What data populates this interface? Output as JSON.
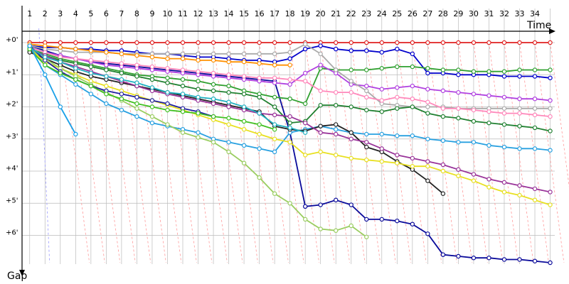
{
  "chart_data": {
    "type": "line",
    "title": "",
    "xlabel": "Time",
    "ylabel": "Gap",
    "x": [
      1,
      2,
      3,
      4,
      5,
      6,
      7,
      8,
      9,
      10,
      11,
      12,
      13,
      14,
      15,
      16,
      17,
      18,
      19,
      20,
      21,
      22,
      23,
      24,
      25,
      26,
      27,
      28,
      29,
      30,
      31,
      32,
      33,
      34,
      35
    ],
    "xtick_labels": [
      "1",
      "2",
      "3",
      "4",
      "5",
      "6",
      "7",
      "8",
      "9",
      "10",
      "11",
      "12",
      "13",
      "14",
      "15",
      "16",
      "17",
      "18",
      "19",
      "20",
      "21",
      "22",
      "23",
      "24",
      "25",
      "26",
      "27",
      "28",
      "29",
      "30",
      "31",
      "32",
      "33",
      "34"
    ],
    "ytick_labels": [
      "+0'",
      "+1'",
      "+2'",
      "+3'",
      "+4'",
      "+5'",
      "+6'"
    ],
    "ytick_values": [
      0,
      1,
      2,
      3,
      4,
      5,
      6
    ],
    "xlim": [
      0.5,
      35.3
    ],
    "ylim": [
      0,
      6.85
    ],
    "y_inverted": true,
    "grid": true,
    "colors": {
      "grid": "#bbbbbb",
      "gap_line": "#ff9999",
      "first_lap_line": "#9999ff"
    },
    "series": [
      {
        "color": "#e02020",
        "values": [
          0,
          0,
          0,
          0,
          0,
          0,
          0,
          0,
          0,
          0,
          0,
          0,
          0,
          0,
          0,
          0,
          0,
          0,
          0,
          0,
          0,
          0,
          0,
          0,
          0,
          0,
          0,
          0,
          0,
          0,
          0,
          0,
          0,
          0,
          0
        ]
      },
      {
        "color": "#0000cc",
        "values": [
          0.1,
          0.15,
          0.15,
          0.2,
          0.2,
          0.25,
          0.25,
          0.3,
          0.35,
          0.35,
          0.4,
          0.45,
          0.45,
          0.5,
          0.55,
          0.55,
          0.6,
          0.5,
          0.2,
          0.1,
          0.2,
          0.25,
          0.25,
          0.3,
          0.2,
          0.35,
          0.95,
          0.95,
          1.0,
          1.0,
          1.0,
          1.05,
          1.05,
          1.05,
          1.1
        ]
      },
      {
        "color": "#0a0a9a",
        "values": [
          0.1,
          0.25,
          0.4,
          0.5,
          0.6,
          0.65,
          0.7,
          0.75,
          0.8,
          0.85,
          0.9,
          0.95,
          1.0,
          1.05,
          1.1,
          1.15,
          1.2,
          2.8,
          5.1,
          5.05,
          4.9,
          5.05,
          5.5,
          5.5,
          5.55,
          5.65,
          5.95,
          6.6,
          6.65,
          6.7,
          6.7,
          6.75,
          6.75,
          6.8,
          6.85
        ]
      },
      {
        "color": "#30a030",
        "values": [
          0.2,
          0.35,
          0.5,
          0.6,
          0.7,
          0.8,
          0.9,
          1.0,
          1.05,
          1.1,
          1.15,
          1.2,
          1.3,
          1.35,
          1.5,
          1.6,
          1.7,
          1.75,
          1.9,
          0.8,
          0.85,
          0.85,
          0.85,
          0.8,
          0.75,
          0.75,
          0.8,
          0.85,
          0.85,
          0.9,
          0.9,
          0.9,
          0.85,
          0.85,
          0.85
        ]
      },
      {
        "color": "#b040e0",
        "values": [
          0.15,
          0.3,
          0.4,
          0.5,
          0.6,
          0.7,
          0.75,
          0.8,
          0.85,
          0.9,
          0.95,
          1.0,
          1.05,
          1.1,
          1.15,
          1.2,
          1.25,
          1.3,
          0.95,
          0.7,
          0.95,
          1.3,
          1.35,
          1.45,
          1.4,
          1.35,
          1.45,
          1.5,
          1.55,
          1.6,
          1.65,
          1.7,
          1.75,
          1.75,
          1.8
        ]
      },
      {
        "color": "#aaaaaa",
        "values": [
          0.1,
          0.2,
          0.25,
          0.3,
          0.3,
          0.3,
          0.35,
          0.35,
          0.35,
          0.35,
          0.35,
          0.35,
          0.35,
          0.35,
          0.35,
          0.35,
          0.35,
          0.3,
          0.05,
          0.35,
          0.85,
          1.2,
          1.5,
          1.9,
          1.95,
          2.0,
          2.0,
          2.0,
          2.05,
          2.05,
          2.05,
          2.05,
          2.05,
          2.05,
          2.05
        ]
      },
      {
        "color": "#ff88bb",
        "values": [
          0.15,
          0.3,
          0.45,
          0.5,
          0.55,
          0.6,
          0.65,
          0.7,
          0.75,
          0.8,
          0.85,
          0.9,
          0.95,
          1.0,
          1.05,
          1.1,
          1.1,
          1.15,
          1.2,
          1.5,
          1.55,
          1.55,
          1.7,
          1.8,
          1.7,
          1.75,
          1.85,
          2.05,
          2.05,
          2.1,
          2.15,
          2.2,
          2.2,
          2.25,
          2.3
        ]
      },
      {
        "color": "#208030",
        "values": [
          0.25,
          0.4,
          0.55,
          0.65,
          0.75,
          0.85,
          0.95,
          1.05,
          1.15,
          1.25,
          1.35,
          1.45,
          1.5,
          1.55,
          1.6,
          1.7,
          2.0,
          2.5,
          2.45,
          1.95,
          1.95,
          2.0,
          2.1,
          2.15,
          2.05,
          2.0,
          2.2,
          2.3,
          2.35,
          2.45,
          2.5,
          2.55,
          2.6,
          2.65,
          2.75
        ]
      },
      {
        "color": "#28a0e0",
        "values": [
          0.1,
          0.7,
          1.0,
          1.3,
          1.6,
          1.9,
          2.1,
          2.3,
          2.5,
          2.6,
          2.7,
          2.8,
          3.0,
          3.1,
          3.2,
          3.3,
          3.4,
          2.8,
          2.7,
          2.6,
          2.7,
          2.8,
          2.85,
          2.85,
          2.9,
          2.9,
          3.0,
          3.05,
          3.1,
          3.1,
          3.2,
          3.25,
          3.3,
          3.3,
          3.35
        ]
      },
      {
        "color": "#222222",
        "values": [
          0.3,
          0.5,
          0.7,
          0.9,
          1.05,
          1.15,
          1.25,
          1.35,
          1.45,
          1.55,
          1.65,
          1.75,
          1.85,
          1.95,
          2.05,
          2.15,
          2.6,
          2.7,
          2.75,
          2.6,
          2.55,
          2.8,
          3.25,
          3.4,
          3.7,
          3.95,
          4.3,
          4.7,
          null,
          null,
          null,
          null,
          null,
          null,
          null
        ]
      },
      {
        "color": "#993399",
        "values": [
          0.2,
          0.4,
          0.6,
          0.75,
          0.9,
          1.05,
          1.2,
          1.35,
          1.5,
          1.6,
          1.7,
          1.8,
          1.9,
          2.0,
          2.1,
          2.2,
          2.25,
          2.3,
          2.5,
          2.8,
          2.85,
          3.0,
          3.1,
          3.3,
          3.5,
          3.6,
          3.7,
          3.8,
          3.95,
          4.1,
          4.25,
          4.35,
          4.45,
          4.55,
          4.65
        ]
      },
      {
        "color": "#e8e020",
        "values": [
          0.2,
          0.6,
          0.8,
          1.0,
          1.2,
          1.35,
          1.5,
          1.65,
          1.8,
          1.95,
          2.1,
          2.25,
          2.4,
          2.55,
          2.7,
          2.85,
          3.0,
          3.1,
          3.5,
          3.4,
          3.5,
          3.6,
          3.65,
          3.7,
          3.75,
          3.85,
          3.85,
          4.0,
          4.15,
          4.3,
          4.5,
          4.65,
          4.75,
          4.9,
          5.05
        ]
      },
      {
        "color": "#9acd60",
        "values": [
          0.2,
          0.5,
          0.8,
          1.05,
          1.3,
          1.55,
          1.8,
          2.05,
          2.3,
          2.55,
          2.8,
          2.95,
          3.1,
          3.4,
          3.75,
          4.2,
          4.7,
          5.0,
          5.5,
          5.8,
          5.85,
          5.7,
          6.05,
          null,
          null,
          null,
          null,
          null,
          null,
          null,
          null,
          null,
          null,
          null,
          null
        ]
      },
      {
        "color": "#2020a0",
        "values": [
          0.1,
          0.55,
          0.9,
          1.15,
          1.35,
          1.5,
          1.6,
          1.7,
          1.8,
          1.9,
          2.05,
          2.15,
          2.3,
          null,
          null,
          null,
          null,
          null,
          null,
          null,
          null,
          null,
          null,
          null,
          null,
          null,
          null,
          null,
          null,
          null,
          null,
          null,
          null,
          null,
          null
        ]
      },
      {
        "color": "#20b0c0",
        "values": [
          0.15,
          0.45,
          0.6,
          0.8,
          0.95,
          1.05,
          1.15,
          1.25,
          1.4,
          1.55,
          1.6,
          1.7,
          1.75,
          1.85,
          2.0,
          2.2,
          2.55,
          2.65,
          2.8,
          null,
          null,
          null,
          null,
          null,
          null,
          null,
          null,
          null,
          null,
          null,
          null,
          null,
          null,
          null,
          null
        ]
      },
      {
        "color": "#ff9000",
        "values": [
          0.05,
          0.1,
          0.15,
          0.2,
          0.25,
          0.3,
          0.35,
          0.4,
          0.45,
          0.5,
          0.5,
          0.55,
          0.55,
          0.6,
          0.6,
          0.65,
          0.7,
          0.7,
          null,
          null,
          null,
          null,
          null,
          null,
          null,
          null,
          null,
          null,
          null,
          null,
          null,
          null,
          null,
          null,
          null
        ]
      },
      {
        "color": "#40c020",
        "values": [
          0.2,
          0.7,
          0.95,
          1.15,
          1.35,
          1.6,
          1.75,
          1.9,
          2.0,
          2.1,
          2.15,
          2.2,
          2.3,
          2.35,
          2.45,
          2.55,
          2.7,
          null,
          null,
          null,
          null,
          null,
          null,
          null,
          null,
          null,
          null,
          null,
          null,
          null,
          null,
          null,
          null,
          null,
          null
        ]
      },
      {
        "color": "#1aa0e8",
        "values": [
          0.1,
          1.0,
          2.0,
          2.85,
          null,
          null,
          null,
          null,
          null,
          null,
          null,
          null,
          null,
          null,
          null,
          null,
          null,
          null,
          null,
          null,
          null,
          null,
          null,
          null,
          null,
          null,
          null,
          null,
          null,
          null,
          null,
          null,
          null,
          null,
          null
        ]
      }
    ]
  }
}
